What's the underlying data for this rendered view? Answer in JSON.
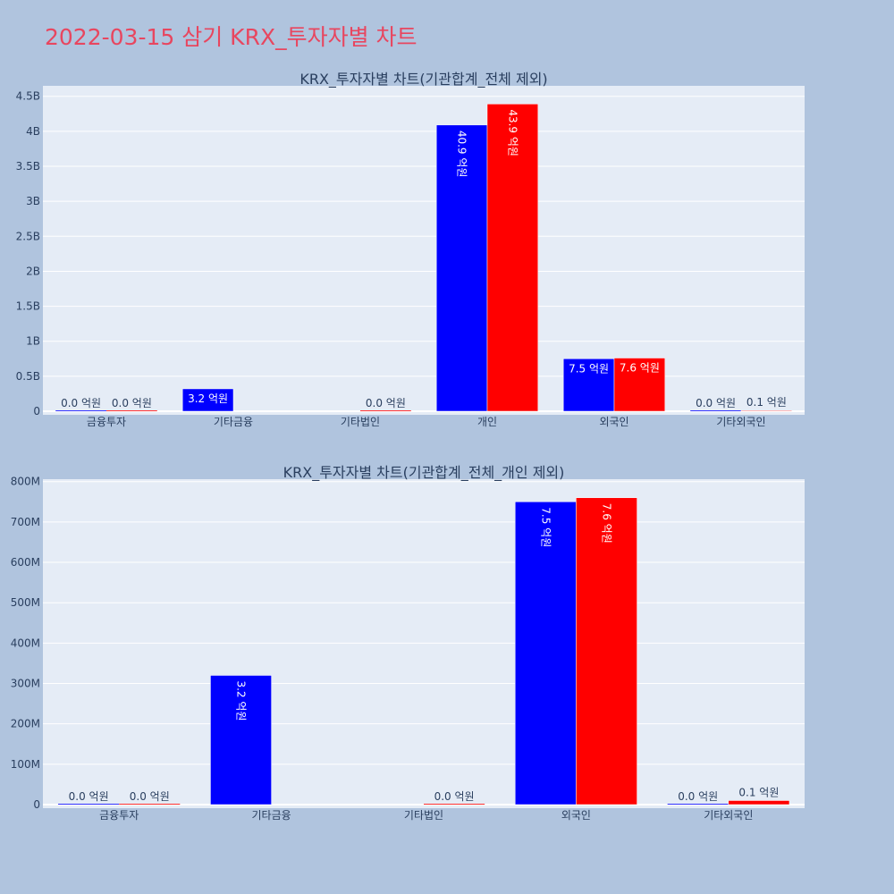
{
  "page": {
    "title": "2022-03-15 삼기 KRX_투자자별 차트"
  },
  "colors": {
    "buy": "#0000ff",
    "sell": "#ff0000",
    "plot_bg": "#e5ecf6",
    "page_bg": "#b0c4de",
    "grid": "#ffffff",
    "title": "#e8465f"
  },
  "chart_data": [
    {
      "type": "bar",
      "title": "KRX_투자자별 차트(기관합계_전체 제외)",
      "categories": [
        "금융투자",
        "기타금융",
        "기타법인",
        "개인",
        "외국인",
        "기타외국인"
      ],
      "series": [
        {
          "values": [
            0,
            320000000,
            null,
            4090000000,
            750000000,
            0
          ],
          "labels": [
            "0.0 억원",
            "3.2 억원",
            "",
            "40.9 억원",
            "7.5 억원",
            "0.0 억원"
          ]
        },
        {
          "values": [
            0,
            null,
            0,
            4390000000,
            760000000,
            10000000
          ],
          "labels": [
            "0.0 억원",
            "",
            "0.0 억원",
            "43.9 억원",
            "7.6 억원",
            "0.1 억원"
          ]
        }
      ],
      "ylim": [
        0,
        4650000000
      ],
      "yticks": [
        0,
        500000000,
        1000000000,
        1500000000,
        2000000000,
        2500000000,
        3000000000,
        3500000000,
        4000000000,
        4500000000
      ],
      "ytick_labels": [
        "0",
        "0.5B",
        "1B",
        "1.5B",
        "2B",
        "2.5B",
        "3B",
        "3.5B",
        "4B",
        "4.5B"
      ],
      "grid": true,
      "legend": "none"
    },
    {
      "type": "bar",
      "title": "KRX_투자자별 차트(기관합계_전체_개인 제외)",
      "categories": [
        "금융투자",
        "기타금융",
        "기타법인",
        "외국인",
        "기타외국인"
      ],
      "series": [
        {
          "values": [
            0,
            320000000,
            null,
            750000000,
            0
          ],
          "labels": [
            "0.0 억원",
            "3.2 억원",
            "",
            "7.5 억원",
            "0.0 억원"
          ]
        },
        {
          "values": [
            0,
            null,
            0,
            760000000,
            10000000
          ],
          "labels": [
            "0.0 억원",
            "",
            "0.0 억원",
            "7.6 억원",
            "0.1 억원"
          ]
        }
      ],
      "ylim": [
        0,
        806000000
      ],
      "yticks": [
        0,
        100000000,
        200000000,
        300000000,
        400000000,
        500000000,
        600000000,
        700000000,
        800000000
      ],
      "ytick_labels": [
        "0",
        "100M",
        "200M",
        "300M",
        "400M",
        "500M",
        "600M",
        "700M",
        "800M"
      ],
      "grid": true,
      "legend": "none"
    }
  ]
}
